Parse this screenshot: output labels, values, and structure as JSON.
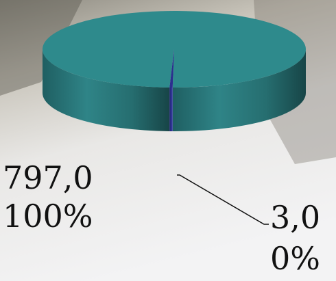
{
  "chart_data": {
    "type": "pie",
    "categories": [
      null,
      null
    ],
    "values": [
      797,
      3
    ],
    "value_labels": [
      "797,0",
      "3,0"
    ],
    "percent_labels": [
      "100%",
      "0%"
    ],
    "colors": [
      "#2e8a8c",
      "#2b2f8e"
    ]
  }
}
